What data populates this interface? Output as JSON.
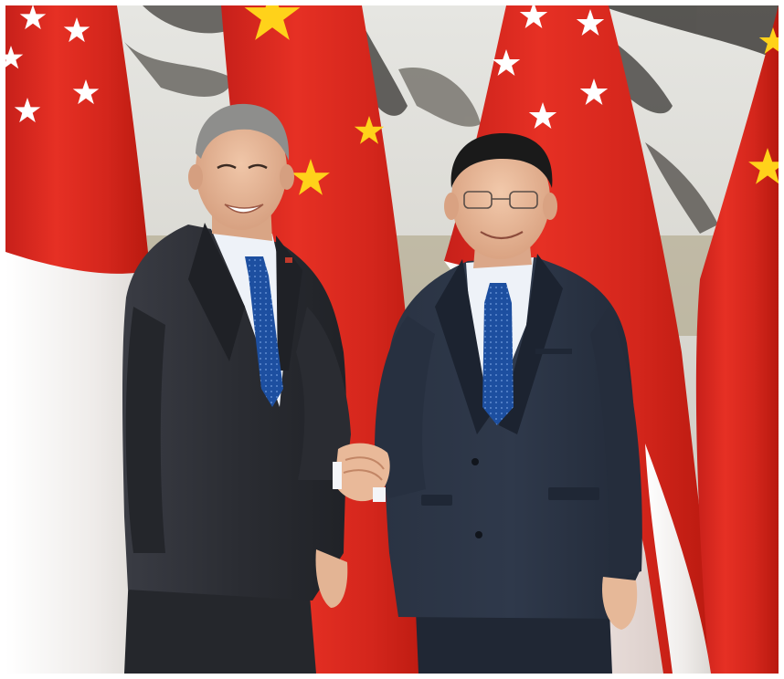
{
  "photo": {
    "colors": {
      "backdrop": "#d9d9d3",
      "painting_ink": "#4a4a48",
      "flag_red": "#e12a1f",
      "flag_red_dark": "#b91a14",
      "flag_white": "#f4f2f0",
      "china_star": "#ffd21a",
      "suit_charcoal": "#2c2e34",
      "suit_navy": "#27303f",
      "shirt": "#eef2f8",
      "tie_blue": "#1f56a8",
      "skin": "#e8b99a",
      "hair_grey": "#9a9a9a",
      "hair_black": "#1a1a1a"
    }
  }
}
